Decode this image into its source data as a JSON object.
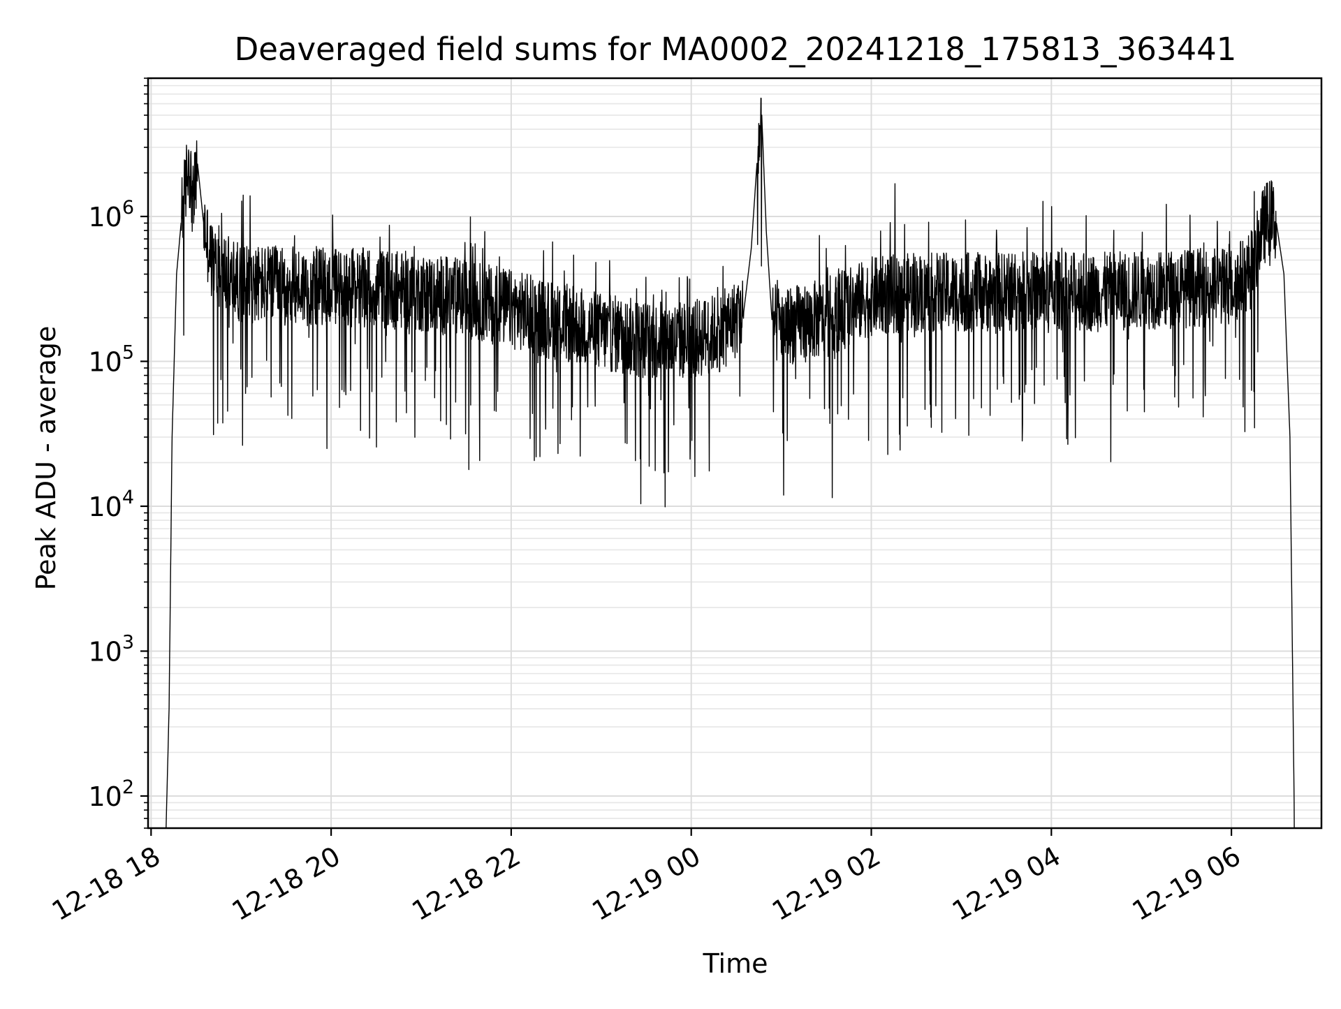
{
  "chart_data": {
    "type": "line",
    "title": "Deaveraged field sums for MA0002_20241218_175813_363441",
    "xlabel": "Time",
    "ylabel": "Peak ADU - average",
    "yscale": "log",
    "ylim": [
      60,
      9000000
    ],
    "xlim": [
      "2024-12-18 17:58",
      "2024-12-19 07:00"
    ],
    "grid": true,
    "x_ticks": [
      {
        "value": "2024-12-18 18:00",
        "label": "12-18 18"
      },
      {
        "value": "2024-12-18 20:00",
        "label": "12-18 20"
      },
      {
        "value": "2024-12-18 22:00",
        "label": "12-18 22"
      },
      {
        "value": "2024-12-19 00:00",
        "label": "12-19 00"
      },
      {
        "value": "2024-12-19 02:00",
        "label": "12-19 02"
      },
      {
        "value": "2024-12-19 04:00",
        "label": "12-19 04"
      },
      {
        "value": "2024-12-19 06:00",
        "label": "12-19 06"
      }
    ],
    "y_ticks": [
      {
        "value": 100,
        "base": "10",
        "exp": "2"
      },
      {
        "value": 1000,
        "base": "10",
        "exp": "3"
      },
      {
        "value": 10000,
        "base": "10",
        "exp": "4"
      },
      {
        "value": 100000,
        "base": "10",
        "exp": "5"
      },
      {
        "value": 1000000,
        "base": "10",
        "exp": "6"
      }
    ],
    "series": [
      {
        "color": "#000000",
        "points": [
          [
            "2024-12-18 18:10",
            60
          ],
          [
            "2024-12-18 18:12",
            400
          ],
          [
            "2024-12-18 18:14",
            30000
          ],
          [
            "2024-12-18 18:17",
            400000
          ],
          [
            "2024-12-18 18:20",
            900000
          ],
          [
            "2024-12-18 18:23",
            1600000
          ],
          [
            "2024-12-18 18:25",
            2500000
          ],
          [
            "2024-12-18 18:28",
            1200000
          ],
          [
            "2024-12-18 18:31",
            2300000
          ],
          [
            "2024-12-18 18:35",
            900000
          ],
          [
            "2024-12-18 18:40",
            500000
          ],
          [
            "2024-12-18 18:50",
            400000
          ],
          [
            "2024-12-18 19:00",
            350000
          ],
          [
            "2024-12-18 19:30",
            330000
          ],
          [
            "2024-12-18 20:00",
            330000
          ],
          [
            "2024-12-18 20:30",
            320000
          ],
          [
            "2024-12-18 21:00",
            300000
          ],
          [
            "2024-12-18 21:30",
            270000
          ],
          [
            "2024-12-18 22:00",
            230000
          ],
          [
            "2024-12-18 22:30",
            190000
          ],
          [
            "2024-12-18 23:00",
            160000
          ],
          [
            "2024-12-18 23:30",
            140000
          ],
          [
            "2024-12-19 00:00",
            140000
          ],
          [
            "2024-12-19 00:20",
            160000
          ],
          [
            "2024-12-19 00:35",
            220000
          ],
          [
            "2024-12-19 00:40",
            600000
          ],
          [
            "2024-12-19 00:44",
            2500000
          ],
          [
            "2024-12-19 00:47",
            5000000
          ],
          [
            "2024-12-19 00:50",
            800000
          ],
          [
            "2024-12-19 00:54",
            180000
          ],
          [
            "2024-12-19 01:10",
            180000
          ],
          [
            "2024-12-19 01:30",
            200000
          ],
          [
            "2024-12-19 02:00",
            280000
          ],
          [
            "2024-12-19 02:30",
            300000
          ],
          [
            "2024-12-19 03:00",
            300000
          ],
          [
            "2024-12-19 03:30",
            300000
          ],
          [
            "2024-12-19 04:00",
            310000
          ],
          [
            "2024-12-19 04:30",
            300000
          ],
          [
            "2024-12-19 05:00",
            310000
          ],
          [
            "2024-12-19 05:30",
            320000
          ],
          [
            "2024-12-19 06:00",
            330000
          ],
          [
            "2024-12-19 06:15",
            450000
          ],
          [
            "2024-12-19 06:20",
            800000
          ],
          [
            "2024-12-19 06:25",
            1000000
          ],
          [
            "2024-12-19 06:30",
            900000
          ],
          [
            "2024-12-19 06:35",
            400000
          ],
          [
            "2024-12-19 06:39",
            30000
          ],
          [
            "2024-12-19 06:42",
            60
          ]
        ]
      }
    ]
  }
}
